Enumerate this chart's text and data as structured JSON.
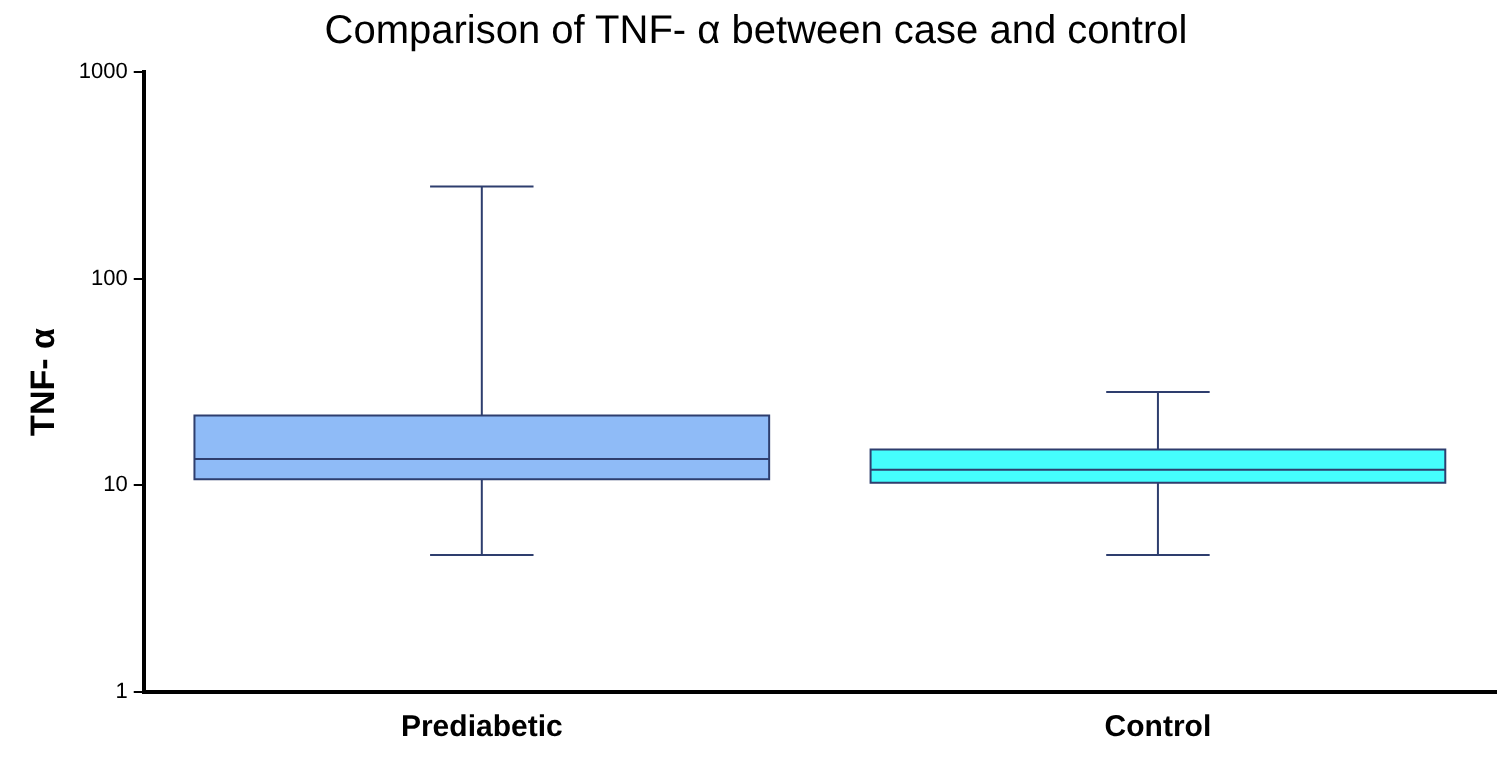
{
  "chart_data": {
    "type": "box",
    "title": "Comparison of TNF- α between case and control",
    "ylabel": "TNF- α",
    "categories": [
      "Prediabetic",
      "Control"
    ],
    "boxes": [
      {
        "low": 4.6,
        "q1": 10.7,
        "median": 13.4,
        "q3": 21.8,
        "high": 279
      },
      {
        "low": 4.6,
        "q1": 10.3,
        "median": 11.9,
        "q3": 14.9,
        "high": 28.3
      }
    ],
    "colors": [
      "#8fbbf7",
      "#45fdfd"
    ],
    "log": true,
    "ylim": [
      1,
      1000
    ],
    "yticks": [
      1,
      10,
      100,
      1000
    ],
    "grid": false,
    "legend": false
  }
}
